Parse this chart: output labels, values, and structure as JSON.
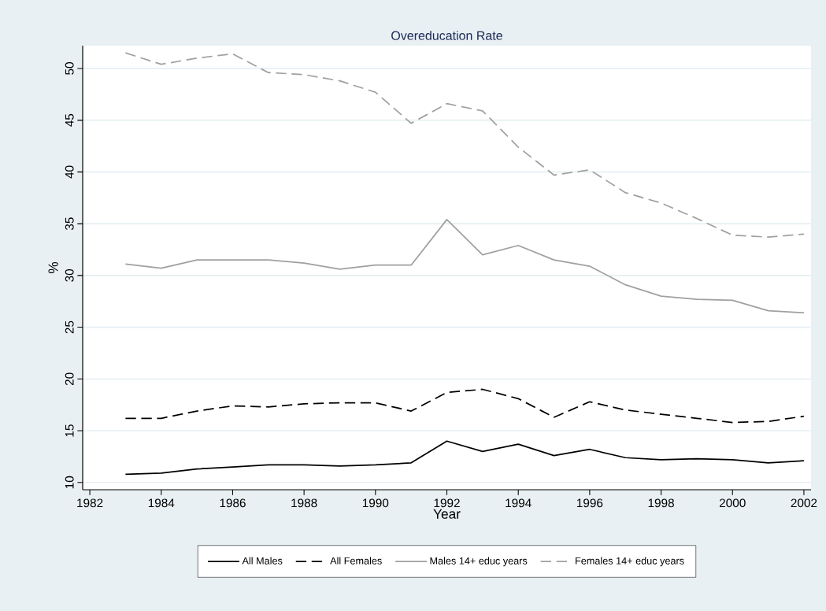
{
  "chart_data": {
    "type": "line",
    "title": "Overeducation Rate",
    "xlabel": "Year",
    "ylabel": "%",
    "x": [
      1983,
      1984,
      1985,
      1986,
      1987,
      1988,
      1989,
      1990,
      1991,
      1992,
      1993,
      1994,
      1995,
      1996,
      1997,
      1998,
      1999,
      2000,
      2001,
      2002
    ],
    "series": [
      {
        "name": "All Males",
        "color": "#000000",
        "line_style": "solid",
        "values": [
          10.8,
          10.9,
          11.3,
          11.5,
          11.7,
          11.7,
          11.6,
          11.7,
          11.9,
          14.0,
          13.0,
          13.7,
          12.6,
          13.2,
          12.4,
          12.2,
          12.3,
          12.2,
          11.9,
          12.1
        ]
      },
      {
        "name": "All Females",
        "color": "#000000",
        "line_style": "dashed",
        "values": [
          16.2,
          16.2,
          16.9,
          17.4,
          17.3,
          17.6,
          17.7,
          17.7,
          16.9,
          18.7,
          19.0,
          18.1,
          16.3,
          17.8,
          17.0,
          16.6,
          16.2,
          15.8,
          15.9,
          16.4
        ]
      },
      {
        "name": "Males 14+ educ years",
        "color": "#a0a0a0",
        "line_style": "solid",
        "values": [
          31.1,
          30.7,
          31.5,
          31.5,
          31.5,
          31.2,
          30.6,
          31.0,
          31.0,
          35.4,
          32.0,
          32.9,
          31.5,
          30.9,
          29.1,
          28.0,
          27.7,
          27.6,
          26.6,
          26.4
        ]
      },
      {
        "name": "Females 14+ educ years",
        "color": "#a0a0a0",
        "line_style": "dashed",
        "values": [
          51.5,
          50.4,
          51.0,
          51.4,
          49.6,
          49.4,
          48.8,
          47.7,
          44.7,
          46.6,
          45.9,
          42.4,
          39.7,
          40.2,
          38.0,
          37.0,
          35.5,
          33.9,
          33.7,
          34.0
        ]
      }
    ],
    "xlim": [
      1981.8,
      2002.2
    ],
    "ylim": [
      9.3,
      52.2
    ],
    "xticks": [
      1982,
      1984,
      1986,
      1988,
      1990,
      1992,
      1994,
      1996,
      1998,
      2000,
      2002
    ],
    "yticks": [
      10,
      15,
      20,
      25,
      30,
      35,
      40,
      45,
      50
    ],
    "grid": "y",
    "legend": "bottom",
    "marker": "none"
  }
}
